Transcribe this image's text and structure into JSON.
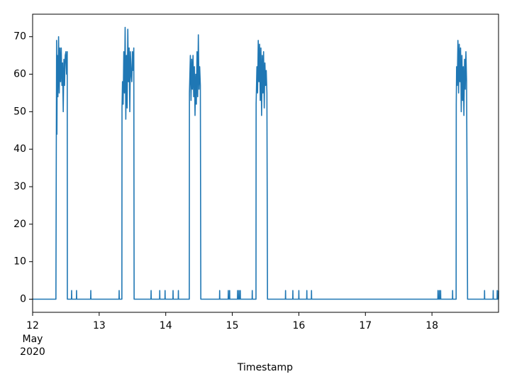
{
  "chart_data": {
    "type": "line",
    "xlabel": "Timestamp",
    "xtick_month": "May",
    "xtick_year": "2020",
    "x": [
      12,
      12.35,
      12.352,
      12.36,
      12.365,
      12.37,
      12.38,
      12.39,
      12.4,
      12.41,
      12.42,
      12.43,
      12.44,
      12.45,
      12.46,
      12.47,
      12.48,
      12.49,
      12.5,
      12.51,
      12.52,
      12.522,
      12.584,
      12.586,
      12.588,
      12.658,
      12.66,
      12.662,
      12.872,
      12.874,
      12.876,
      13.298,
      13.3,
      13.302,
      13.341,
      13.343,
      13.35,
      13.36,
      13.37,
      13.38,
      13.39,
      13.4,
      13.41,
      13.42,
      13.43,
      13.44,
      13.45,
      13.46,
      13.47,
      13.48,
      13.49,
      13.5,
      13.51,
      13.52,
      13.525,
      13.778,
      13.78,
      13.782,
      13.908,
      13.91,
      13.912,
      13.988,
      13.99,
      13.992,
      14.108,
      14.11,
      14.112,
      14.188,
      14.19,
      14.192,
      14.354,
      14.356,
      14.37,
      14.38,
      14.39,
      14.4,
      14.41,
      14.42,
      14.43,
      14.44,
      14.45,
      14.46,
      14.47,
      14.48,
      14.49,
      14.5,
      14.51,
      14.52,
      14.527,
      14.808,
      14.81,
      14.812,
      14.938,
      14.94,
      14.942,
      14.958,
      14.96,
      14.962,
      15.078,
      15.08,
      15.082,
      15.098,
      15.1,
      15.102,
      15.118,
      15.12,
      15.122,
      15.298,
      15.3,
      15.302,
      15.356,
      15.358,
      15.37,
      15.38,
      15.39,
      15.4,
      15.41,
      15.42,
      15.43,
      15.44,
      15.45,
      15.46,
      15.47,
      15.48,
      15.49,
      15.5,
      15.51,
      15.52,
      15.529,
      15.798,
      15.8,
      15.802,
      15.908,
      15.91,
      15.912,
      15.998,
      16.0,
      16.002,
      16.118,
      16.12,
      16.122,
      16.188,
      16.19,
      16.192,
      18.088,
      18.09,
      18.092,
      18.108,
      18.11,
      18.112,
      18.128,
      18.13,
      18.132,
      18.308,
      18.31,
      18.312,
      18.363,
      18.365,
      18.37,
      18.38,
      18.39,
      18.4,
      18.41,
      18.42,
      18.43,
      18.44,
      18.45,
      18.46,
      18.47,
      18.48,
      18.49,
      18.5,
      18.51,
      18.52,
      18.535,
      18.788,
      18.79,
      18.792,
      18.918,
      18.92,
      18.922,
      18.978,
      18.98,
      18.982,
      18.998,
      19
    ],
    "series": [
      {
        "color": "#1f77b4",
        "values": [
          0,
          0,
          14,
          69,
          44,
          65,
          54,
          70,
          55,
          67,
          58,
          67,
          57,
          63,
          50,
          64,
          57,
          65,
          66,
          60,
          66,
          0,
          0,
          2.3,
          0,
          0,
          2.3,
          0,
          0,
          2.3,
          0,
          0,
          2.3,
          0,
          0,
          51,
          58,
          52,
          66,
          55,
          72.5,
          48,
          65,
          51,
          72,
          58,
          67,
          50,
          66,
          60,
          58,
          66,
          61,
          67,
          0,
          0,
          2.3,
          0,
          0,
          2.3,
          0,
          0,
          2.3,
          0,
          0,
          2.3,
          0,
          0,
          2.3,
          0,
          0,
          55,
          65,
          53,
          64,
          56,
          65,
          54,
          62,
          49,
          60,
          52,
          66,
          54,
          70.5,
          56,
          62,
          57,
          0,
          0,
          2.3,
          0,
          0,
          2.3,
          0,
          0,
          2.3,
          0,
          0,
          2.3,
          0,
          0,
          2.3,
          0,
          0,
          2.3,
          0,
          0,
          2.3,
          0,
          0,
          52,
          62,
          55,
          69,
          58,
          68,
          53,
          67,
          49,
          65,
          55,
          66,
          51,
          63,
          57,
          61,
          55,
          0,
          0,
          2.3,
          0,
          0,
          2.3,
          0,
          0,
          2.3,
          0,
          0,
          2.3,
          0,
          0,
          2.3,
          0,
          0,
          2.3,
          0,
          0,
          2.3,
          0,
          0,
          2.3,
          0,
          0,
          2.3,
          0,
          0,
          52,
          62,
          57,
          69,
          55,
          68,
          58,
          67,
          50,
          65,
          53,
          62,
          49,
          64,
          56,
          66,
          58,
          0,
          0,
          2.3,
          0,
          0,
          2.3,
          0,
          0,
          2.3,
          0,
          0,
          2.3
        ]
      }
    ],
    "xlim": [
      12,
      19
    ],
    "ylim": [
      -3.5,
      76
    ],
    "xticks": [
      12,
      13,
      14,
      15,
      16,
      17,
      18
    ],
    "yticks": [
      0,
      10,
      20,
      30,
      40,
      50,
      60,
      70
    ],
    "grid": false
  }
}
